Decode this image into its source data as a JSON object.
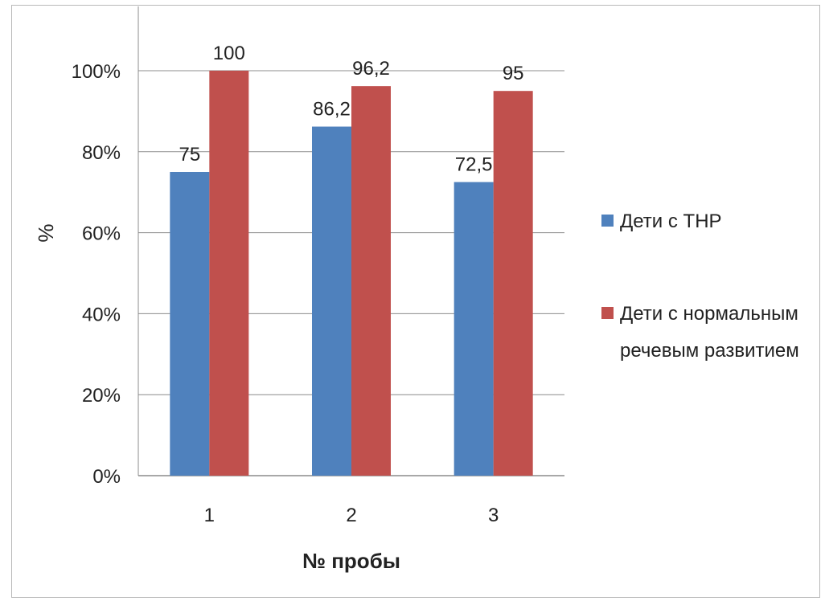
{
  "chart_data": {
    "type": "bar",
    "categories": [
      "1",
      "2",
      "3"
    ],
    "series": [
      {
        "name": "Дети с ТНР",
        "values": [
          75,
          86.2,
          72.5
        ],
        "labels": [
          "75",
          "86,2",
          "72,5"
        ],
        "color": "#4F81BD"
      },
      {
        "name": "Дети с нормальным речевым развитием",
        "values": [
          100,
          96.2,
          95
        ],
        "labels": [
          "100",
          "96,2",
          "95"
        ],
        "color": "#C0504D"
      }
    ],
    "title": "",
    "xlabel": "№ пробы",
    "ylabel": "%",
    "ylim": [
      0,
      100
    ],
    "yticks": [
      "0%",
      "20%",
      "40%",
      "60%",
      "80%",
      "100%"
    ],
    "grid": true,
    "legend_position": "right"
  },
  "legend": {
    "line1": "Дети с ТНР",
    "line2a": "Дети с нормальным",
    "line2b": "речевым развитием"
  }
}
